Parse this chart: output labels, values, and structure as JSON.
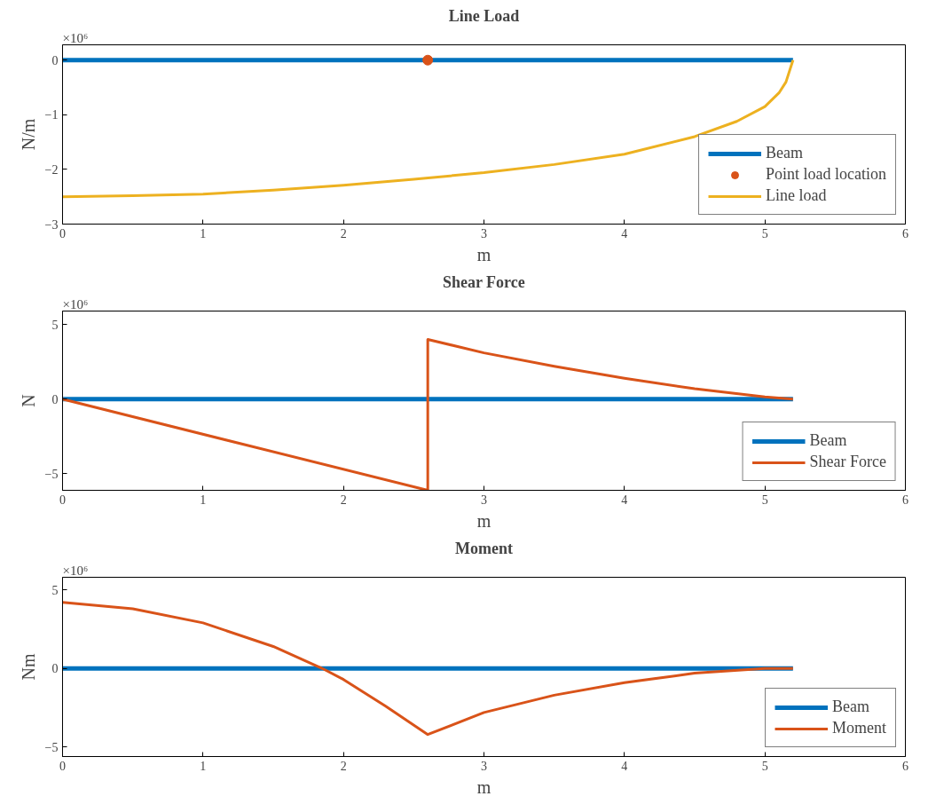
{
  "chart_data": [
    {
      "type": "line",
      "title": "Line Load",
      "xlabel": "m",
      "ylabel": "N/m",
      "annotations": [
        "×10⁶"
      ],
      "xlim": [
        0,
        6
      ],
      "xticks": [
        0,
        1,
        2,
        3,
        4,
        5,
        6
      ],
      "ylim": [
        -3,
        0.28
      ],
      "yticks": [
        -3,
        -2,
        -1,
        0
      ],
      "legend": "bottom right",
      "series": [
        {
          "name": "Beam",
          "color": "#0072bd",
          "x": [
            0,
            5.2
          ],
          "values": [
            0,
            0
          ]
        },
        {
          "name": "Point load location",
          "type": "scatter",
          "marker": "circle",
          "color": "#d95319",
          "x": [
            2.6
          ],
          "values": [
            0
          ]
        },
        {
          "name": "Line load",
          "color": "#edb120",
          "x": [
            0,
            0.5,
            1,
            1.5,
            2,
            2.5,
            3,
            3.5,
            4,
            4.5,
            4.8,
            5,
            5.1,
            5.15,
            5.2
          ],
          "values": [
            -2.5,
            -2.48,
            -2.45,
            -2.38,
            -2.29,
            -2.18,
            -2.06,
            -1.91,
            -1.72,
            -1.4,
            -1.12,
            -0.85,
            -0.6,
            -0.4,
            0
          ]
        }
      ]
    },
    {
      "type": "line",
      "title": "Shear Force",
      "xlabel": "m",
      "ylabel": "N",
      "annotations": [
        "×10⁶"
      ],
      "xlim": [
        0,
        6
      ],
      "xticks": [
        0,
        1,
        2,
        3,
        4,
        5,
        6
      ],
      "ylim": [
        -6.1,
        5.9
      ],
      "yticks": [
        -5,
        0,
        5
      ],
      "legend": "bottom right",
      "series": [
        {
          "name": "Beam",
          "color": "#0072bd",
          "x": [
            0,
            5.2
          ],
          "values": [
            0,
            0
          ]
        },
        {
          "name": "Shear Force",
          "color": "#d95319",
          "x": [
            0,
            2.6,
            2.6,
            3,
            3.5,
            4,
            4.5,
            5,
            5.2
          ],
          "values": [
            0,
            -6.1,
            4.0,
            3.1,
            2.2,
            1.4,
            0.7,
            0.15,
            0
          ]
        }
      ]
    },
    {
      "type": "line",
      "title": "Moment",
      "xlabel": "m",
      "ylabel": "Nm",
      "annotations": [
        "×10⁶"
      ],
      "xlim": [
        0,
        6
      ],
      "xticks": [
        0,
        1,
        2,
        3,
        4,
        5,
        6
      ],
      "ylim": [
        -5.6,
        5.8
      ],
      "yticks": [
        -5,
        0,
        5
      ],
      "legend": "bottom right",
      "series": [
        {
          "name": "Beam",
          "color": "#0072bd",
          "x": [
            0,
            5.2
          ],
          "values": [
            0,
            0
          ]
        },
        {
          "name": "Moment",
          "color": "#d95319",
          "x": [
            0,
            0.5,
            1,
            1.5,
            1.85,
            2,
            2.3,
            2.6,
            3,
            3.5,
            4,
            4.5,
            5,
            5.2
          ],
          "values": [
            4.2,
            3.8,
            2.9,
            1.4,
            0,
            -0.7,
            -2.4,
            -4.2,
            -2.8,
            -1.7,
            -0.9,
            -0.3,
            0,
            0
          ]
        }
      ]
    }
  ]
}
